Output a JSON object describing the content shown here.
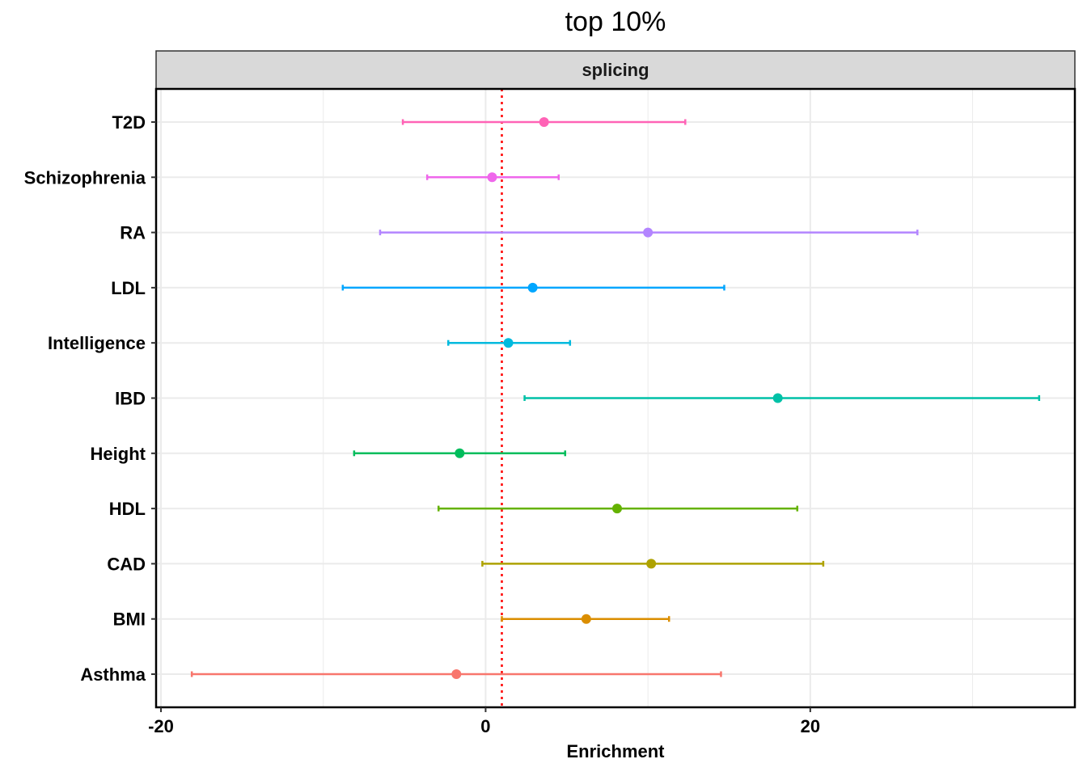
{
  "chart_data": {
    "type": "errorbar",
    "title": "top 10%",
    "facet": "splicing",
    "xlabel": "Enrichment",
    "ylabel": "",
    "xlim": [
      -20.3,
      36.3
    ],
    "xticks": [
      -20,
      0,
      20
    ],
    "reference_line": 1,
    "grid": true,
    "categories": [
      "Asthma",
      "BMI",
      "CAD",
      "HDL",
      "Height",
      "IBD",
      "Intelligence",
      "LDL",
      "RA",
      "Schizophrenia",
      "T2D"
    ],
    "estimate": [
      -1.8,
      6.2,
      10.2,
      8.1,
      -1.6,
      18.0,
      1.4,
      2.9,
      10.0,
      0.4,
      3.6
    ],
    "lower": [
      -18.1,
      1.0,
      -0.2,
      -2.9,
      -8.1,
      2.4,
      -2.3,
      -8.8,
      -6.5,
      -3.6,
      -5.1
    ],
    "upper": [
      14.5,
      11.3,
      20.8,
      19.2,
      4.9,
      34.1,
      5.2,
      14.7,
      26.6,
      4.5,
      12.3
    ],
    "colors": [
      "#F8766D",
      "#DB8E00",
      "#AEA200",
      "#64B200",
      "#00BD5C",
      "#00C1A7",
      "#00BADE",
      "#00A6FF",
      "#B385FF",
      "#EF67EB",
      "#FF63B6"
    ]
  }
}
